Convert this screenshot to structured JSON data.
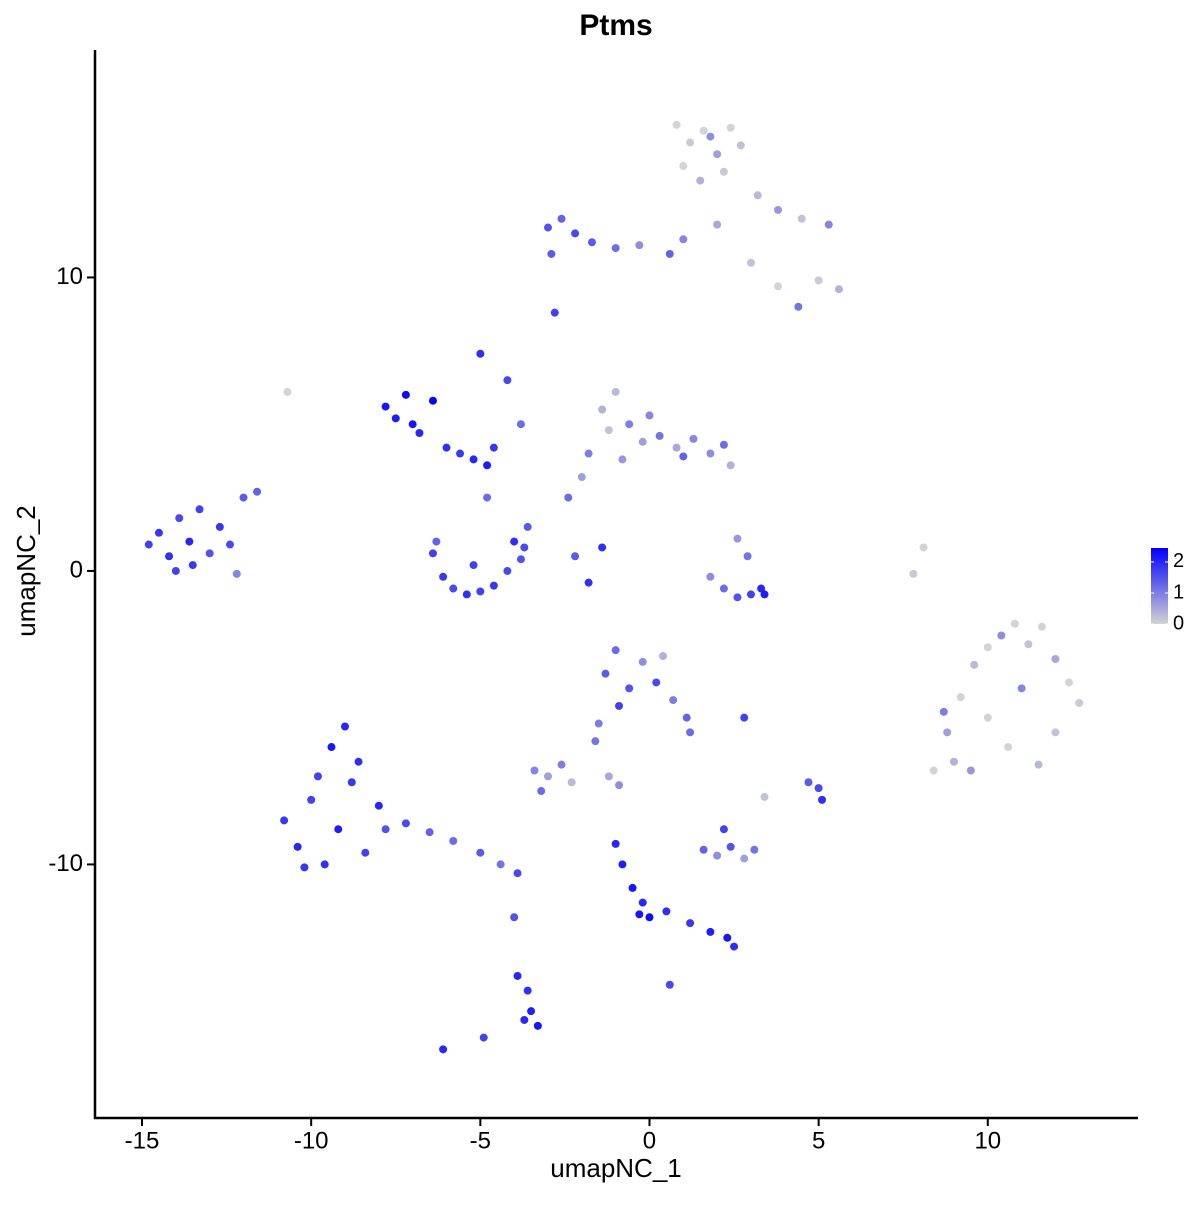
{
  "chart_data": {
    "type": "scatter",
    "title": "Ptms",
    "x_label": "umapNC_1",
    "y_label": "umapNC_2",
    "xlim": [
      -16.39,
      14.44
    ],
    "ylim": [
      -18.64,
      17.75
    ],
    "xticks": [
      -15,
      -10,
      -5,
      0,
      5,
      10
    ],
    "yticks": [
      -10,
      0,
      10
    ],
    "colorbar": {
      "range": [
        0,
        2.45
      ],
      "ticks": [
        0,
        1,
        2
      ],
      "low_color": "#d3d3d3",
      "high_color": "#0000ff"
    },
    "x": [
      -14.8,
      -14.5,
      -14.2,
      -13.9,
      -13.6,
      -13.3,
      -13.0,
      -12.7,
      -12.4,
      -12.2,
      -13.5,
      -12.0,
      -11.6,
      -14.0,
      0.8,
      1.2,
      1.6,
      2.0,
      2.4,
      2.7,
      1.0,
      1.5,
      2.2,
      1.8,
      3.2,
      3.8,
      4.5,
      5.3,
      5.6,
      4.4,
      3.0,
      3.8,
      5.0,
      2.0,
      -3.0,
      -2.6,
      -2.2,
      -1.7,
      -1.0,
      -0.3,
      0.6,
      1.0,
      -2.9,
      -2.8,
      -7.8,
      -7.5,
      -7.2,
      -6.8,
      -6.4,
      -6.0,
      -5.6,
      -5.2,
      -4.8,
      -4.6,
      -7.0,
      -5.0,
      -4.2,
      -3.8,
      -10.7,
      -6.4,
      -6.1,
      -5.8,
      -5.4,
      -5.0,
      -4.6,
      -4.2,
      -3.8,
      -3.6,
      -4.0,
      -5.2,
      -6.3,
      -4.8,
      -3.7,
      -1.8,
      -2.2,
      -1.4,
      -1.0,
      -0.6,
      -0.2,
      0.3,
      0.8,
      1.3,
      1.8,
      2.2,
      2.4,
      -1.8,
      -0.8,
      -1.2,
      0.0,
      1.0,
      -2.0,
      -2.4,
      -1.4,
      1.8,
      2.2,
      2.6,
      3.0,
      3.3,
      2.9,
      2.6,
      3.4,
      7.8,
      8.1,
      8.4,
      8.8,
      9.2,
      9.6,
      10.0,
      10.4,
      10.8,
      11.2,
      11.6,
      12.0,
      12.4,
      12.7,
      9.0,
      10.0,
      11.0,
      12.0,
      9.5,
      10.6,
      11.5,
      8.7,
      -10.8,
      -10.4,
      -10.0,
      -9.6,
      -9.2,
      -8.8,
      -8.4,
      -8.0,
      -9.4,
      -9.0,
      -8.6,
      -10.2,
      -9.8,
      -7.8,
      -7.2,
      -6.5,
      -5.8,
      -5.0,
      -4.4,
      -3.9,
      -1.3,
      -1.0,
      -0.6,
      -0.2,
      0.2,
      0.7,
      1.1,
      -0.9,
      0.4,
      1.2,
      2.8,
      -1.5,
      -3.4,
      -3.0,
      -2.6,
      -2.3,
      -1.6,
      -1.2,
      -0.9,
      -3.2,
      1.6,
      2.0,
      2.4,
      2.8,
      3.1,
      2.2,
      3.4,
      5.0,
      5.1,
      4.7,
      -1.0,
      -0.8,
      -0.5,
      -0.2,
      0.0,
      -0.3,
      0.5,
      1.2,
      1.8,
      2.3,
      2.5,
      0.6,
      -3.9,
      -3.6,
      -3.5,
      -3.3,
      -3.7,
      -4.0,
      -6.1,
      -4.9
    ],
    "y": [
      0.9,
      1.3,
      0.5,
      1.8,
      1.0,
      2.1,
      0.6,
      1.5,
      0.9,
      -0.1,
      0.2,
      2.5,
      2.7,
      0.0,
      15.2,
      14.6,
      15.0,
      14.2,
      15.1,
      14.5,
      13.8,
      13.3,
      13.6,
      14.8,
      12.8,
      12.3,
      12.0,
      11.8,
      9.6,
      9.0,
      10.5,
      9.7,
      9.9,
      11.8,
      11.7,
      12.0,
      11.5,
      11.2,
      11.0,
      11.1,
      10.8,
      11.3,
      10.8,
      8.8,
      5.6,
      5.2,
      6.0,
      4.7,
      5.8,
      4.2,
      4.0,
      3.8,
      3.6,
      4.2,
      5.0,
      7.4,
      6.5,
      5.0,
      6.1,
      0.6,
      -0.2,
      -0.6,
      -0.8,
      -0.7,
      -0.5,
      0.0,
      0.4,
      1.5,
      1.0,
      0.2,
      1.0,
      2.5,
      0.8,
      -0.4,
      0.5,
      5.5,
      6.1,
      5.0,
      4.4,
      4.6,
      4.2,
      4.5,
      4.0,
      4.3,
      3.6,
      4.0,
      3.8,
      4.8,
      5.3,
      3.9,
      3.2,
      2.5,
      0.8,
      -0.2,
      -0.6,
      -0.9,
      -0.8,
      -0.6,
      0.5,
      1.1,
      -0.8,
      -0.1,
      0.8,
      -6.8,
      -5.5,
      -4.3,
      -3.2,
      -2.6,
      -2.2,
      -1.8,
      -2.5,
      -1.9,
      -3.0,
      -3.8,
      -4.5,
      -6.5,
      -5.0,
      -4.0,
      -5.5,
      -6.8,
      -6.0,
      -6.6,
      -4.8,
      -8.5,
      -9.4,
      -7.8,
      -10.0,
      -8.8,
      -7.2,
      -9.6,
      -8.0,
      -6.0,
      -5.3,
      -6.5,
      -10.1,
      -7.0,
      -8.8,
      -8.6,
      -8.9,
      -9.2,
      -9.6,
      -10.0,
      -10.3,
      -3.5,
      -2.7,
      -4.0,
      -3.1,
      -3.8,
      -4.4,
      -5.0,
      -4.6,
      -2.9,
      -5.5,
      -5.0,
      -5.2,
      -6.8,
      -7.0,
      -6.6,
      -7.2,
      -5.8,
      -7.0,
      -7.3,
      -7.5,
      -9.5,
      -9.7,
      -9.4,
      -9.8,
      -9.5,
      -8.8,
      -7.7,
      -7.4,
      -7.8,
      -7.2,
      -9.3,
      -10.0,
      -10.8,
      -11.3,
      -11.8,
      -11.7,
      -11.6,
      -12.0,
      -12.3,
      -12.5,
      -12.8,
      -14.1,
      -13.8,
      -14.3,
      -15.0,
      -15.5,
      -15.3,
      -11.8,
      -16.3,
      -15.9
    ],
    "values": [
      1.7,
      1.8,
      1.9,
      1.6,
      2.0,
      1.7,
      1.5,
      1.8,
      1.6,
      0.9,
      1.8,
      1.4,
      1.3,
      1.7,
      0,
      0.1,
      0,
      0.6,
      0,
      0.2,
      0,
      0.4,
      0.1,
      0.8,
      0.3,
      0.7,
      0.2,
      0.9,
      0.4,
      1.1,
      0.2,
      0,
      0.1,
      0.5,
      1.5,
      1.3,
      1.6,
      1.4,
      1.2,
      0.8,
      1.3,
      0.9,
      1.4,
      1.7,
      2.2,
      2.1,
      2.3,
      2.0,
      2.4,
      1.9,
      1.8,
      2.0,
      2.1,
      1.8,
      2.2,
      1.9,
      1.6,
      1.2,
      0,
      1.7,
      1.8,
      1.6,
      1.9,
      1.7,
      1.8,
      1.6,
      1.5,
      1.4,
      1.9,
      1.7,
      1.3,
      1.2,
      1.6,
      1.9,
      1.4,
      0.4,
      0.3,
      1.0,
      0.6,
      1.1,
      0.5,
      0.9,
      0.8,
      1.2,
      0.4,
      1.0,
      0.7,
      0.2,
      0.9,
      1.3,
      0.6,
      1.2,
      1.9,
      0.8,
      1.2,
      1.5,
      1.7,
      2.0,
      1.1,
      0.7,
      2.1,
      0.1,
      0,
      0,
      0.6,
      0,
      0.3,
      0,
      0.8,
      0,
      0.2,
      0,
      0.5,
      0,
      0.1,
      0.4,
      0,
      0.9,
      0.2,
      0.7,
      0,
      0.3,
      1.0,
      1.8,
      2.0,
      1.7,
      1.9,
      2.1,
      1.8,
      1.7,
      2.0,
      2.2,
      2.0,
      1.9,
      1.8,
      1.7,
      1.5,
      1.6,
      1.3,
      1.2,
      1.4,
      1.1,
      1.6,
      1.4,
      1.2,
      1.5,
      0.8,
      1.6,
      1.0,
      1.3,
      1.7,
      0.4,
      1.2,
      1.7,
      1.0,
      0.9,
      0.6,
      1.0,
      0.3,
      1.1,
      0.5,
      0.8,
      1.2,
      1.3,
      0.8,
      1.5,
      0.6,
      1.1,
      1.7,
      0.2,
      1.6,
      1.9,
      1.4,
      2.0,
      2.1,
      2.2,
      2.0,
      2.3,
      2.2,
      1.9,
      1.8,
      2.1,
      2.2,
      1.9,
      1.6,
      2.0,
      1.9,
      2.1,
      2.2,
      2.0,
      1.5,
      2.0,
      1.7
    ]
  }
}
